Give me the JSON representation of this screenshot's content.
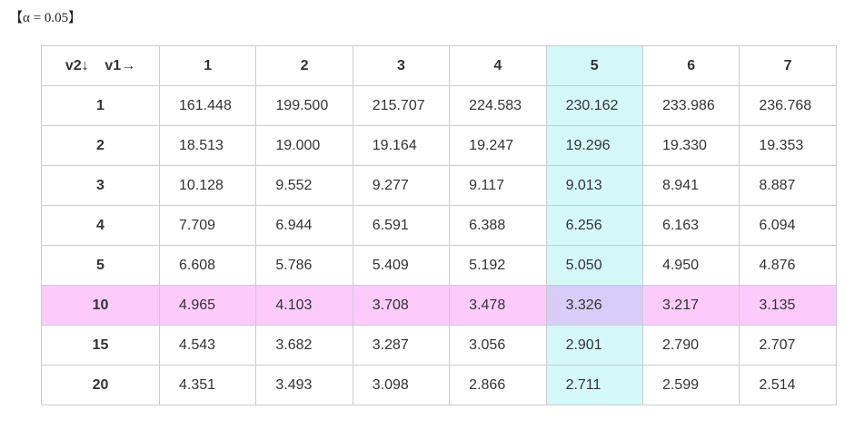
{
  "alpha_label": "【α = 0.05】",
  "corner": {
    "v2": "v2↓",
    "v1": "v1→"
  },
  "columns": [
    "1",
    "2",
    "3",
    "4",
    "5",
    "6",
    "7"
  ],
  "rows": [
    {
      "v2": "1",
      "values": [
        "161.448",
        "199.500",
        "215.707",
        "224.583",
        "230.162",
        "233.986",
        "236.768"
      ]
    },
    {
      "v2": "2",
      "values": [
        "18.513",
        "19.000",
        "19.164",
        "19.247",
        "19.296",
        "19.330",
        "19.353"
      ]
    },
    {
      "v2": "3",
      "values": [
        "10.128",
        "9.552",
        "9.277",
        "9.117",
        "9.013",
        "8.941",
        "8.887"
      ]
    },
    {
      "v2": "4",
      "values": [
        "7.709",
        "6.944",
        "6.591",
        "6.388",
        "6.256",
        "6.163",
        "6.094"
      ]
    },
    {
      "v2": "5",
      "values": [
        "6.608",
        "5.786",
        "5.409",
        "5.192",
        "5.050",
        "4.950",
        "4.876"
      ]
    },
    {
      "v2": "10",
      "values": [
        "4.965",
        "4.103",
        "3.708",
        "3.478",
        "3.326",
        "3.217",
        "3.135"
      ]
    },
    {
      "v2": "15",
      "values": [
        "4.543",
        "3.682",
        "3.287",
        "3.056",
        "2.901",
        "2.790",
        "2.707"
      ]
    },
    {
      "v2": "20",
      "values": [
        "4.351",
        "3.493",
        "3.098",
        "2.866",
        "2.711",
        "2.599",
        "2.514"
      ]
    }
  ],
  "highlight": {
    "column": "5",
    "row": "10"
  },
  "colors": {
    "column_highlight": "#d4f8f8",
    "row_highlight": "#fccbfc",
    "intersection": "#d8ccf8",
    "grid": "#cccccc"
  }
}
